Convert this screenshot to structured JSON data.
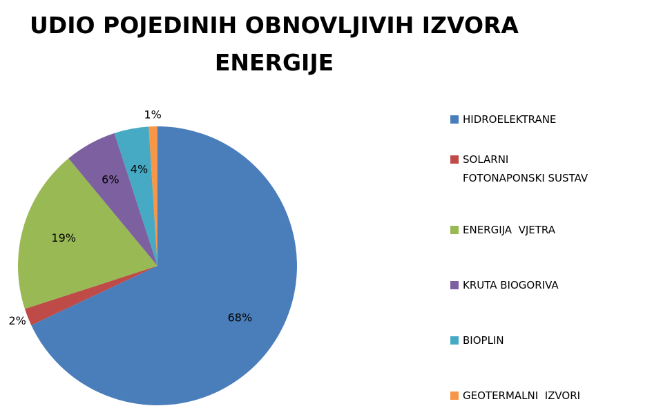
{
  "chart_data": {
    "type": "pie",
    "title": [
      "UDIO POJEDINIH OBNOVLJIVIH IZVORA",
      "ENERGIJE"
    ],
    "categories": [
      "HIDROELEKTRANE",
      "SOLARNI FOTONAPONSKI SUSTAV",
      "ENERGIJA  VJETRA",
      "KRUTA BIOGORIVA",
      "BIOPLIN",
      "GEOTERMALNI  IZVORI"
    ],
    "values": [
      68,
      2,
      19,
      6,
      4,
      1
    ],
    "value_labels": [
      "68%",
      "2%",
      "19%",
      "6%",
      "4%",
      "1%"
    ],
    "colors": [
      "#4a7ebb",
      "#be4b48",
      "#98b954",
      "#7d60a0",
      "#46aac5",
      "#f79646"
    ],
    "legend": "right"
  }
}
